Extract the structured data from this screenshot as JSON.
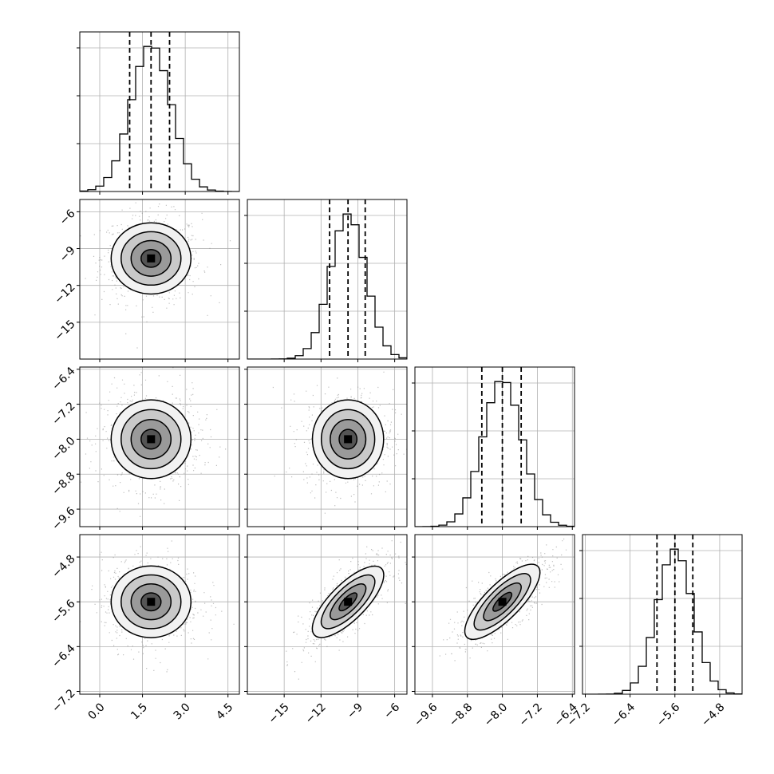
{
  "chart_data": {
    "type": "corner",
    "grid": true,
    "parameters": [
      {
        "median": 1.8,
        "q16": 1.05,
        "q84": 2.45,
        "lim": [
          -0.7,
          4.9
        ],
        "ticks": [
          "0.0",
          "1.5",
          "3.0",
          "4.5"
        ],
        "tick_values": [
          0.0,
          1.5,
          3.0,
          4.5
        ]
      },
      {
        "median": -9.8,
        "q16": -11.3,
        "q84": -8.4,
        "lim": [
          -18.0,
          -5.0
        ],
        "ticks": [
          "−15",
          "−12",
          "−9",
          "−6"
        ],
        "tick_values": [
          -15,
          -12,
          -9,
          -6
        ]
      },
      {
        "median": -8.0,
        "q16": -8.47,
        "q84": -7.57,
        "lim": [
          -10.0,
          -6.35
        ],
        "ticks": [
          "−9.6",
          "−8.8",
          "−8.0",
          "−7.2",
          "−6.4"
        ],
        "tick_values": [
          -9.6,
          -8.8,
          -8.0,
          -7.2,
          -6.4
        ]
      },
      {
        "median": -5.6,
        "q16": -5.92,
        "q84": -5.28,
        "lim": [
          -7.25,
          -4.4
        ],
        "ticks": [
          "−7.2",
          "−6.4",
          "−5.6",
          "−4.8"
        ],
        "tick_values": [
          -7.2,
          -6.4,
          -5.6,
          -4.8
        ]
      }
    ],
    "y_axis_ticks": [
      null,
      {
        "ticks": [
          "−6",
          "−9",
          "−12",
          "−15"
        ],
        "tick_values": [
          -6,
          -9,
          -12,
          -15
        ]
      },
      {
        "ticks": [
          "−6.4",
          "−7.2",
          "−8.0",
          "−8.8",
          "−9.6"
        ],
        "tick_values": [
          -6.4,
          -7.2,
          -8.0,
          -8.8,
          -9.6
        ]
      },
      {
        "ticks": [
          "−4.8",
          "−5.6",
          "−6.4",
          "−7.2"
        ],
        "tick_values": [
          -4.8,
          -5.6,
          -6.4,
          -7.2
        ]
      }
    ],
    "correlations": [
      [
        1.0,
        0.0,
        0.0,
        0.0
      ],
      [
        0.0,
        1.0,
        0.0,
        0.75
      ],
      [
        0.0,
        0.0,
        1.0,
        0.78
      ],
      [
        0.0,
        0.75,
        0.78,
        1.0
      ]
    ],
    "contour_levels_sigma": [
      0.5,
      1.0,
      1.5,
      2.0
    ]
  }
}
